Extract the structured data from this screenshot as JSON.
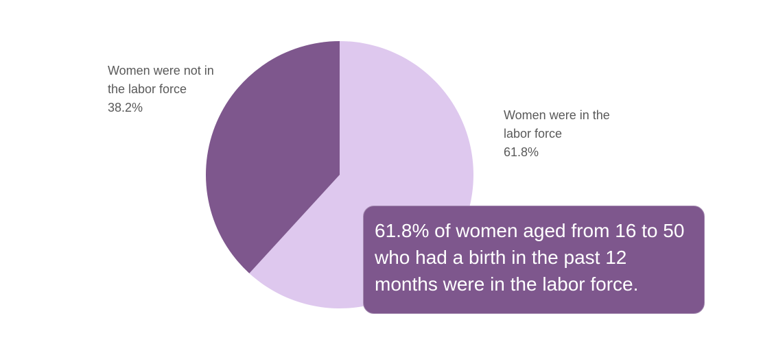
{
  "chart_data": {
    "type": "pie",
    "slices": [
      {
        "label": "Women were in the labor force",
        "value": 61.8,
        "display": "61.8%",
        "color": "#dec8ee"
      },
      {
        "label": "Women were not in the labor force",
        "value": 38.2,
        "display": "38.2%",
        "color": "#7e578d"
      }
    ],
    "start": "12 o'clock",
    "direction": "clockwise"
  },
  "callout": {
    "text": "61.8% of women aged from 16 to 50 who had a birth in the past 12 months were in the labor force.",
    "background": "#7e578d",
    "text_color": "#ffffff"
  },
  "colors": {
    "label_text": "#595959"
  }
}
